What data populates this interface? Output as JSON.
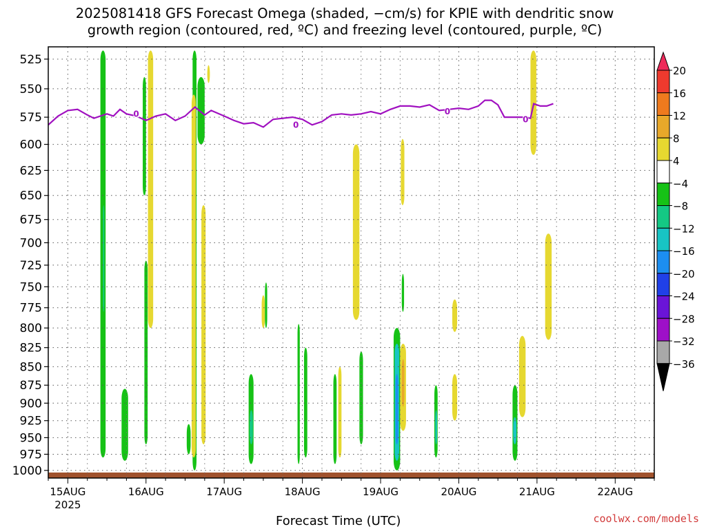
{
  "title_line1": "2025081418 GFS Forecast Omega (shaded, −cm/s) for KPIE with dendritic snow",
  "title_line2": "growth region (contoured, red, ºC) and freezing level (contoured, purple, ºC)",
  "credit": "coolwx.com/models",
  "chart_data": {
    "type": "heatmap",
    "xlabel": "Forecast Time (UTC)",
    "x_ticks": [
      {
        "label": "15AUG",
        "sub": "2025",
        "hour": 6
      },
      {
        "label": "16AUG",
        "hour": 30
      },
      {
        "label": "17AUG",
        "hour": 54
      },
      {
        "label": "18AUG",
        "hour": 78
      },
      {
        "label": "19AUG",
        "hour": 102
      },
      {
        "label": "20AUG",
        "hour": 126
      },
      {
        "label": "21AUG",
        "hour": 150
      },
      {
        "label": "22AUG",
        "hour": 174
      }
    ],
    "x_range_hours": [
      0,
      186
    ],
    "y_ticks": [
      "525",
      "550",
      "575",
      "600",
      "625",
      "650",
      "675",
      "700",
      "725",
      "750",
      "775",
      "800",
      "825",
      "850",
      "875",
      "900",
      "925",
      "950",
      "975",
      "1000"
    ],
    "y_range_hpa": [
      515,
      1012
    ],
    "y_scale": "log",
    "grid": true,
    "colorbar": {
      "labels": [
        "20",
        "16",
        "12",
        "8",
        "4",
        "−4",
        "−8",
        "−12",
        "−16",
        "−20",
        "−24",
        "−28",
        "−32",
        "−36"
      ],
      "colors": [
        "#ee2a5a",
        "#ee3a2e",
        "#ee7a1e",
        "#e8a82a",
        "#e6d830",
        "#ffffff",
        "#16c216",
        "#14c884",
        "#18c4c4",
        "#1c8ef0",
        "#2040e8",
        "#6a14d8",
        "#9e10c8",
        "#a8a8a8",
        "#000000"
      ]
    },
    "omega_cells": [
      {
        "t0": 16,
        "t1": 17.6,
        "p0": 518,
        "p1": 980,
        "value": -6
      },
      {
        "t0": 16.8,
        "t1": 17.2,
        "p0": 660,
        "p1": 780,
        "value": -10
      },
      {
        "t0": 22.5,
        "t1": 24.5,
        "p0": 880,
        "p1": 985,
        "value": -6
      },
      {
        "t0": 29,
        "t1": 30,
        "p0": 540,
        "p1": 650,
        "value": -5
      },
      {
        "t0": 29.5,
        "t1": 30.5,
        "p0": 720,
        "p1": 960,
        "value": -6
      },
      {
        "t0": 30.6,
        "t1": 32.2,
        "p0": 518,
        "p1": 800,
        "value": 5
      },
      {
        "t0": 42.5,
        "t1": 43.7,
        "p0": 930,
        "p1": 975,
        "value": -6
      },
      {
        "t0": 44.3,
        "t1": 45.5,
        "p0": 518,
        "p1": 1000,
        "value": -6
      },
      {
        "t0": 44,
        "t1": 45.3,
        "p0": 555,
        "p1": 980,
        "value": 5
      },
      {
        "t0": 45.8,
        "t1": 48,
        "p0": 540,
        "p1": 600,
        "value": -5
      },
      {
        "t0": 47,
        "t1": 48.3,
        "p0": 660,
        "p1": 960,
        "value": 5
      },
      {
        "t0": 48.8,
        "t1": 49.6,
        "p0": 530,
        "p1": 545,
        "value": 5
      },
      {
        "t0": 61.5,
        "t1": 63,
        "p0": 860,
        "p1": 990,
        "value": -6
      },
      {
        "t0": 61.8,
        "t1": 62.8,
        "p0": 910,
        "p1": 960,
        "value": -10
      },
      {
        "t0": 65.5,
        "t1": 66.5,
        "p0": 760,
        "p1": 800,
        "value": 5
      },
      {
        "t0": 66.5,
        "t1": 67.2,
        "p0": 745,
        "p1": 800,
        "value": -5
      },
      {
        "t0": 76.5,
        "t1": 77.2,
        "p0": 795,
        "p1": 990,
        "value": -6
      },
      {
        "t0": 78.5,
        "t1": 79.5,
        "p0": 825,
        "p1": 980,
        "value": -6
      },
      {
        "t0": 87.5,
        "t1": 88.5,
        "p0": 860,
        "p1": 990,
        "value": -6
      },
      {
        "t0": 89,
        "t1": 90,
        "p0": 850,
        "p1": 980,
        "value": 5
      },
      {
        "t0": 93.5,
        "t1": 95.5,
        "p0": 600,
        "p1": 790,
        "value": 5
      },
      {
        "t0": 95.5,
        "t1": 96.6,
        "p0": 830,
        "p1": 960,
        "value": -6
      },
      {
        "t0": 106,
        "t1": 108,
        "p0": 800,
        "p1": 1000,
        "value": -6
      },
      {
        "t0": 106.3,
        "t1": 107.7,
        "p0": 820,
        "p1": 985,
        "value": -12
      },
      {
        "t0": 106.6,
        "t1": 107.4,
        "p0": 860,
        "p1": 960,
        "value": -17
      },
      {
        "t0": 108,
        "t1": 109.8,
        "p0": 820,
        "p1": 940,
        "value": 5
      },
      {
        "t0": 108.5,
        "t1": 109.3,
        "p0": 840,
        "p1": 905,
        "value": 9
      },
      {
        "t0": 108.2,
        "t1": 109.3,
        "p0": 595,
        "p1": 660,
        "value": 5
      },
      {
        "t0": 108.5,
        "t1": 109.2,
        "p0": 735,
        "p1": 780,
        "value": -6
      },
      {
        "t0": 118.5,
        "t1": 119.5,
        "p0": 875,
        "p1": 980,
        "value": -6
      },
      {
        "t0": 118.8,
        "t1": 119.3,
        "p0": 910,
        "p1": 960,
        "value": -12
      },
      {
        "t0": 124,
        "t1": 125.5,
        "p0": 765,
        "p1": 805,
        "value": 5
      },
      {
        "t0": 124,
        "t1": 125.5,
        "p0": 860,
        "p1": 925,
        "value": 5
      },
      {
        "t0": 142.5,
        "t1": 144,
        "p0": 875,
        "p1": 985,
        "value": -6
      },
      {
        "t0": 142.7,
        "t1": 143.7,
        "p0": 920,
        "p1": 960,
        "value": -12
      },
      {
        "t0": 144.5,
        "t1": 146.5,
        "p0": 810,
        "p1": 920,
        "value": 5
      },
      {
        "t0": 148,
        "t1": 149.8,
        "p0": 518,
        "p1": 610,
        "value": 5
      },
      {
        "t0": 152.5,
        "t1": 154.5,
        "p0": 690,
        "p1": 815,
        "value": 5
      }
    ],
    "freezing_level_hpa": [
      [
        0,
        582
      ],
      [
        3,
        574
      ],
      [
        6,
        569
      ],
      [
        9,
        568
      ],
      [
        12,
        573
      ],
      [
        14,
        576
      ],
      [
        16,
        574
      ],
      [
        18,
        572
      ],
      [
        20,
        574
      ],
      [
        22,
        568
      ],
      [
        24,
        572
      ],
      [
        27,
        574
      ],
      [
        30,
        578
      ],
      [
        33,
        574
      ],
      [
        36,
        572
      ],
      [
        39,
        578
      ],
      [
        42,
        574
      ],
      [
        45,
        566
      ],
      [
        48,
        573
      ],
      [
        50,
        569
      ],
      [
        54,
        574
      ],
      [
        57,
        578
      ],
      [
        60,
        581
      ],
      [
        63,
        580
      ],
      [
        66,
        584
      ],
      [
        69,
        577
      ],
      [
        72,
        576
      ],
      [
        75,
        575
      ],
      [
        78,
        577
      ],
      [
        81,
        582
      ],
      [
        84,
        579
      ],
      [
        87,
        573
      ],
      [
        90,
        572
      ],
      [
        93,
        573
      ],
      [
        96,
        572
      ],
      [
        99,
        570
      ],
      [
        102,
        572
      ],
      [
        105,
        568
      ],
      [
        108,
        565
      ],
      [
        111,
        565
      ],
      [
        114,
        566
      ],
      [
        117,
        564
      ],
      [
        120,
        569
      ],
      [
        123,
        568
      ],
      [
        126,
        567
      ],
      [
        129,
        568
      ],
      [
        132,
        565
      ],
      [
        134,
        560
      ],
      [
        136,
        560
      ],
      [
        138,
        564
      ],
      [
        140,
        575
      ],
      [
        142,
        575
      ],
      [
        146,
        575
      ],
      [
        148,
        576
      ],
      [
        149,
        563
      ],
      [
        151,
        565
      ],
      [
        153,
        565
      ],
      [
        155,
        563
      ]
    ],
    "freezing_labels": [
      {
        "t": 27,
        "p": 572,
        "text": "0"
      },
      {
        "t": 76,
        "p": 582,
        "text": "0"
      },
      {
        "t": 122.5,
        "p": 570,
        "text": "0"
      },
      {
        "t": 146.5,
        "p": 577,
        "text": "0"
      }
    ]
  }
}
